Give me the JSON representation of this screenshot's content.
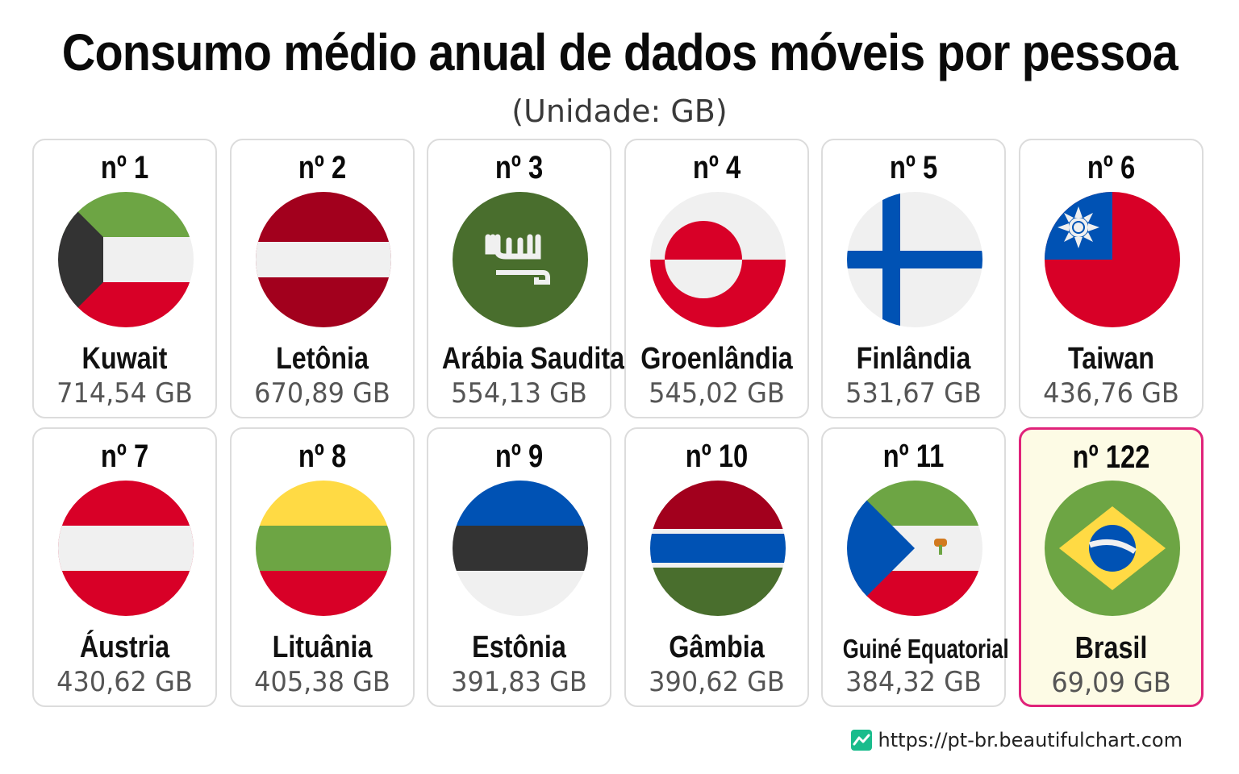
{
  "chart_data": {
    "type": "table",
    "title": "Consumo médio anual de dados móveis por pessoa",
    "subtitle": "(Unidade: GB)",
    "unit": "GB",
    "highlight_color": "#e0237a",
    "entries": [
      {
        "rank": "nº 1",
        "country": "Kuwait",
        "value_label": "714,54 GB",
        "value": 714.54,
        "flag": "kuwait-flag"
      },
      {
        "rank": "nº 2",
        "country": "Letônia",
        "value_label": "670,89 GB",
        "value": 670.89,
        "flag": "latvia-flag"
      },
      {
        "rank": "nº 3",
        "country": "Arábia Saudita",
        "value_label": "554,13 GB",
        "value": 554.13,
        "flag": "saudi-arabia-flag"
      },
      {
        "rank": "nº 4",
        "country": "Groenlândia",
        "value_label": "545,02 GB",
        "value": 545.02,
        "flag": "greenland-flag"
      },
      {
        "rank": "nº 5",
        "country": "Finlândia",
        "value_label": "531,67 GB",
        "value": 531.67,
        "flag": "finland-flag"
      },
      {
        "rank": "nº 6",
        "country": "Taiwan",
        "value_label": "436,76 GB",
        "value": 436.76,
        "flag": "taiwan-flag"
      },
      {
        "rank": "nº 7",
        "country": "Áustria",
        "value_label": "430,62 GB",
        "value": 430.62,
        "flag": "austria-flag"
      },
      {
        "rank": "nº 8",
        "country": "Lituânia",
        "value_label": "405,38 GB",
        "value": 405.38,
        "flag": "lithuania-flag"
      },
      {
        "rank": "nº 9",
        "country": "Estônia",
        "value_label": "391,83 GB",
        "value": 391.83,
        "flag": "estonia-flag"
      },
      {
        "rank": "nº 10",
        "country": "Gâmbia",
        "value_label": "390,62 GB",
        "value": 390.62,
        "flag": "gambia-flag"
      },
      {
        "rank": "nº 11",
        "country": "Guiné Equatorial",
        "value_label": "384,32 GB",
        "value": 384.32,
        "flag": "equatorial-guinea-flag"
      },
      {
        "rank": "nº 122",
        "country": "Brasil",
        "value_label": "69,09 GB",
        "value": 69.09,
        "flag": "brazil-flag",
        "highlighted": true
      }
    ]
  },
  "footer": {
    "url": "https://pt-br.beautifulchart.com",
    "icon": "chart-logo-icon"
  }
}
